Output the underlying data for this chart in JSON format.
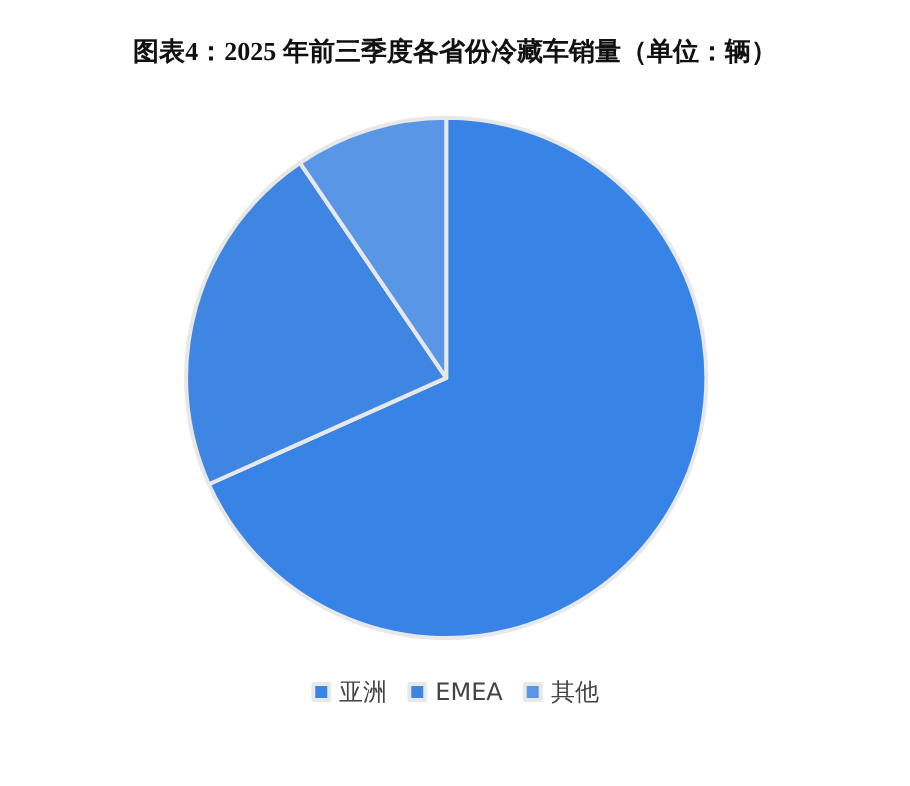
{
  "chart_data": {
    "type": "pie",
    "title": "图表4：2025 年前三季度各省份冷藏车销量（单位：辆）",
    "categories": [
      "亚洲",
      "EMEA",
      "其他"
    ],
    "values": [
      68.3,
      22.2,
      9.5
    ],
    "colors": [
      "#3884e6",
      "#3f86e2",
      "#5996e6"
    ],
    "legend": "bottom"
  }
}
